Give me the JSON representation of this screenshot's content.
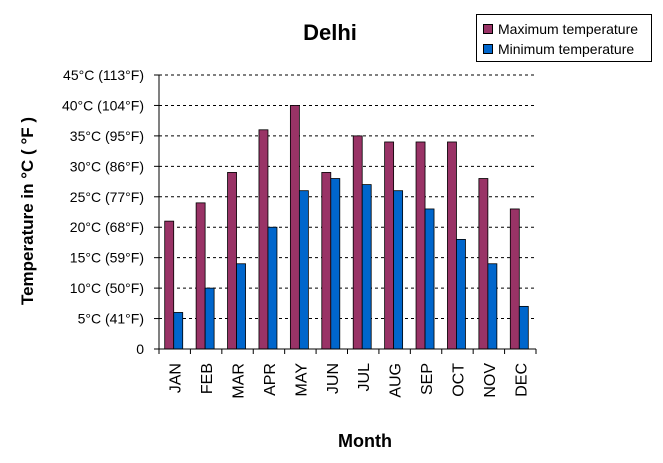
{
  "chart_data": {
    "type": "bar",
    "title": "Delhi",
    "xlabel": "Month",
    "ylabel": "Temperature in °C ( °F )",
    "categories": [
      "JAN",
      "FEB",
      "MAR",
      "APR",
      "MAY",
      "JUN",
      "JUL",
      "AUG",
      "SEP",
      "OCT",
      "NOV",
      "DEC"
    ],
    "series": [
      {
        "name": "Maximum temperature",
        "color": "#993366",
        "values": [
          21,
          24,
          29,
          36,
          40,
          29,
          35,
          34,
          34,
          34,
          28,
          23
        ]
      },
      {
        "name": "Minimum temperature",
        "color": "#0066CC",
        "values": [
          6,
          10,
          14,
          20,
          26,
          28,
          27,
          26,
          23,
          18,
          14,
          7
        ]
      }
    ],
    "ylim": [
      0,
      45
    ],
    "yticks": [
      {
        "value": 0,
        "label": "0"
      },
      {
        "value": 5,
        "label": "5°C (41°F)"
      },
      {
        "value": 10,
        "label": "10°C (50°F)"
      },
      {
        "value": 15,
        "label": "15°C (59°F)"
      },
      {
        "value": 20,
        "label": "20°C (68°F)"
      },
      {
        "value": 25,
        "label": "25°C (77°F)"
      },
      {
        "value": 30,
        "label": "30°C (86°F)"
      },
      {
        "value": 35,
        "label": "35°C (95°F)"
      },
      {
        "value": 40,
        "label": "40°C (104°F)"
      },
      {
        "value": 45,
        "label": "45°C (113°F)"
      }
    ],
    "grid": true,
    "legend_position": "top-right"
  }
}
